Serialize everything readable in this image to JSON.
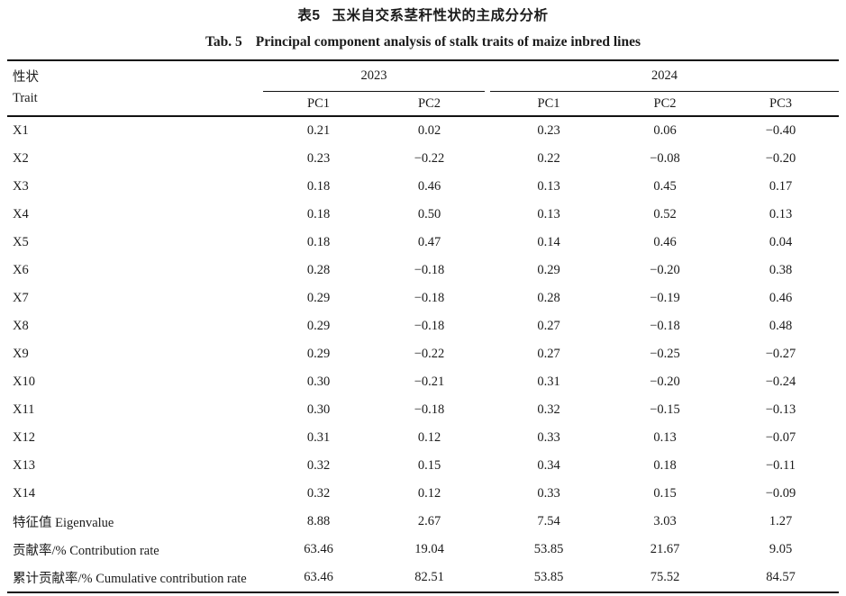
{
  "titles": {
    "zh_label": "表5",
    "zh_text": "玉米自交系茎秆性状的主成分分析",
    "en_label": "Tab. 5",
    "en_text": "Principal component analysis of stalk traits of maize inbred lines"
  },
  "table": {
    "trait_header": {
      "zh": "性状",
      "en": "Trait"
    },
    "year_groups": [
      {
        "label": "2023",
        "subcols": [
          "PC1",
          "PC2"
        ]
      },
      {
        "label": "2024",
        "subcols": [
          "PC1",
          "PC2",
          "PC3"
        ]
      }
    ],
    "rows": [
      {
        "trait": "X1",
        "values": [
          "0.21",
          "0.02",
          "0.23",
          "0.06",
          "−0.40"
        ]
      },
      {
        "trait": "X2",
        "values": [
          "0.23",
          "−0.22",
          "0.22",
          "−0.08",
          "−0.20"
        ]
      },
      {
        "trait": "X3",
        "values": [
          "0.18",
          "0.46",
          "0.13",
          "0.45",
          "0.17"
        ]
      },
      {
        "trait": "X4",
        "values": [
          "0.18",
          "0.50",
          "0.13",
          "0.52",
          "0.13"
        ]
      },
      {
        "trait": "X5",
        "values": [
          "0.18",
          "0.47",
          "0.14",
          "0.46",
          "0.04"
        ]
      },
      {
        "trait": "X6",
        "values": [
          "0.28",
          "−0.18",
          "0.29",
          "−0.20",
          "0.38"
        ]
      },
      {
        "trait": "X7",
        "values": [
          "0.29",
          "−0.18",
          "0.28",
          "−0.19",
          "0.46"
        ]
      },
      {
        "trait": "X8",
        "values": [
          "0.29",
          "−0.18",
          "0.27",
          "−0.18",
          "0.48"
        ]
      },
      {
        "trait": "X9",
        "values": [
          "0.29",
          "−0.22",
          "0.27",
          "−0.25",
          "−0.27"
        ]
      },
      {
        "trait": "X10",
        "values": [
          "0.30",
          "−0.21",
          "0.31",
          "−0.20",
          "−0.24"
        ]
      },
      {
        "trait": "X11",
        "values": [
          "0.30",
          "−0.18",
          "0.32",
          "−0.15",
          "−0.13"
        ]
      },
      {
        "trait": "X12",
        "values": [
          "0.31",
          "0.12",
          "0.33",
          "0.13",
          "−0.07"
        ]
      },
      {
        "trait": "X13",
        "values": [
          "0.32",
          "0.15",
          "0.34",
          "0.18",
          "−0.11"
        ]
      },
      {
        "trait": "X14",
        "values": [
          "0.32",
          "0.12",
          "0.33",
          "0.15",
          "−0.09"
        ]
      },
      {
        "trait": "特征值 Eigenvalue",
        "values": [
          "8.88",
          "2.67",
          "7.54",
          "3.03",
          "1.27"
        ]
      },
      {
        "trait": "贡献率/% Contribution rate",
        "values": [
          "63.46",
          "19.04",
          "53.85",
          "21.67",
          "9.05"
        ]
      },
      {
        "trait": "累计贡献率/% Cumulative contribution rate",
        "values": [
          "63.46",
          "82.51",
          "53.85",
          "75.52",
          "84.57"
        ]
      }
    ]
  }
}
